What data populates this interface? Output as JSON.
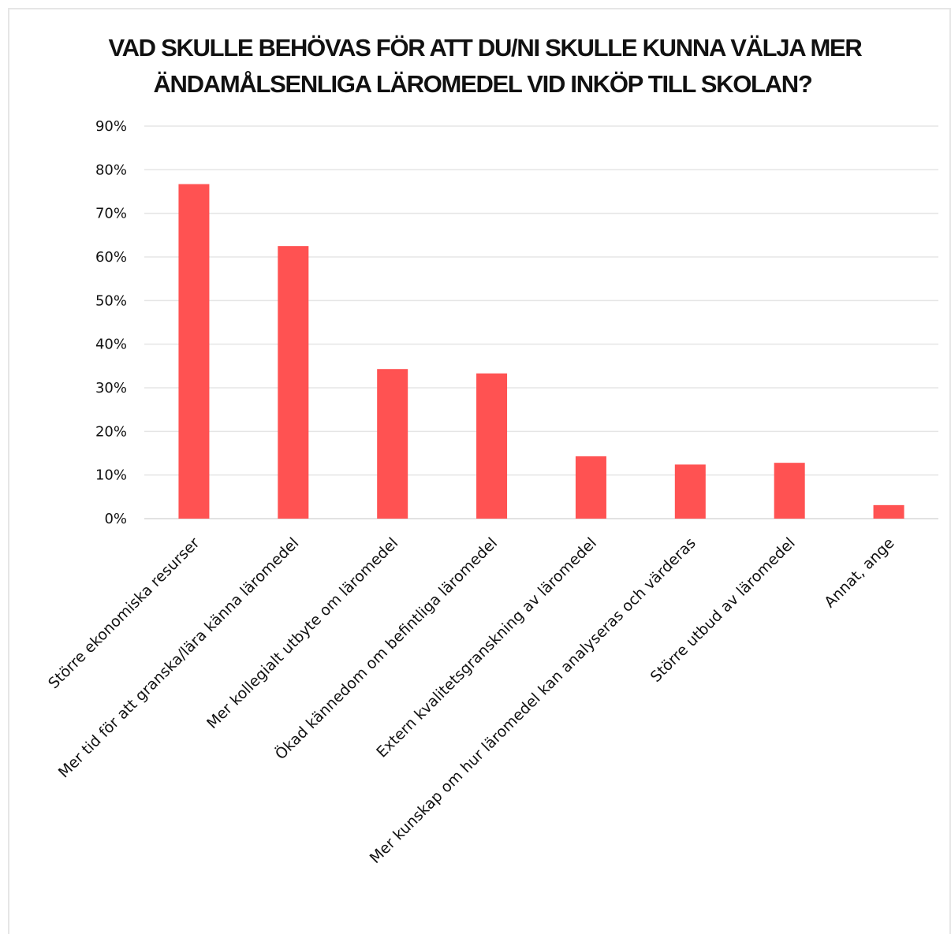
{
  "chart_data": {
    "type": "bar",
    "title_lines": [
      "VAD SKULLE BEHÖVAS FÖR ATT DU/NI SKULLE KUNNA VÄLJA MER",
      "ÄNDAMÅLSENLIGA LÄROMEDEL VID INKÖP TILL SKOLAN?"
    ],
    "categories": [
      "Större ekonomiska resurser",
      "Mer tid för att granska/lära känna läromedel",
      "Mer kollegialt utbyte om läromedel",
      "Ökad kännedom om befintliga läromedel",
      "Extern kvalitetsgranskning av läromedel",
      "Mer kunskap om hur läromedel kan analyseras och värderas",
      "Större utbud av läromedel",
      "Annat, ange"
    ],
    "values": [
      76.7,
      62.5,
      34.3,
      33.3,
      14.3,
      12.4,
      12.8,
      3.1
    ],
    "y_ticks": [
      "0%",
      "10%",
      "20%",
      "30%",
      "40%",
      "50%",
      "60%",
      "70%",
      "80%",
      "90%"
    ],
    "ylim": [
      0,
      90
    ],
    "grid": true,
    "bar_color": "#ff5252"
  }
}
